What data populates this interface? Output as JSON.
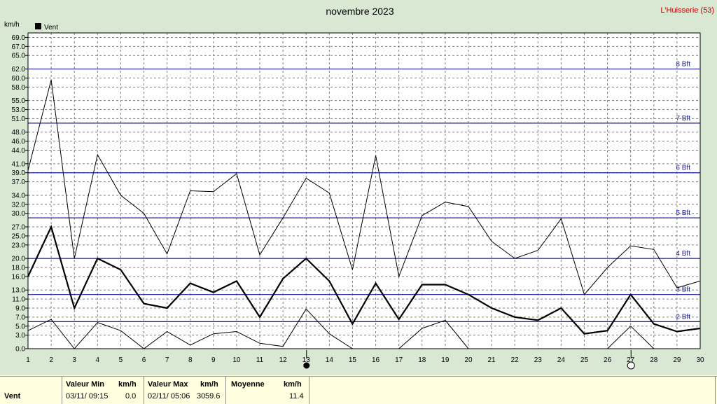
{
  "header": {
    "title": "novembre 2023",
    "station": "L'Huisserie (53)"
  },
  "legend": {
    "label": "Vent"
  },
  "chart_data": {
    "type": "line",
    "title": "novembre 2023",
    "ylabel": "km/h",
    "ylim": [
      0,
      70
    ],
    "yticks": [
      0,
      3,
      5,
      7,
      9,
      11,
      13,
      16,
      18,
      20,
      23,
      25,
      27,
      30,
      32,
      34,
      37,
      39,
      41,
      44,
      46,
      48,
      51,
      53,
      55,
      58,
      60,
      62,
      65,
      67,
      69
    ],
    "ytick_labels": [
      "0.0",
      "3.0",
      "5.0",
      "7.0",
      "9.0",
      "11.0",
      "13.0",
      "16.0",
      "18.0",
      "20.0",
      "23.0",
      "25.0",
      "27.0",
      "30.0",
      "32.0",
      "34.0",
      "37.0",
      "39.0",
      "41.0",
      "44.0",
      "46.0",
      "48.0",
      "51.0",
      "53.0",
      "55.0",
      "58.0",
      "60.0",
      "62.0",
      "65.0",
      "67.0",
      "69.0"
    ],
    "x": [
      1,
      2,
      3,
      4,
      5,
      6,
      7,
      8,
      9,
      10,
      11,
      12,
      13,
      14,
      15,
      16,
      17,
      18,
      19,
      20,
      21,
      22,
      23,
      24,
      25,
      26,
      27,
      28,
      29,
      30
    ],
    "grid": true,
    "legend_position": "top-left",
    "series": [
      {
        "name": "Vent",
        "role": "max",
        "values": [
          39.5,
          59.6,
          20.0,
          43.0,
          34.0,
          30.0,
          21.0,
          35.0,
          34.8,
          38.8,
          20.8,
          29.0,
          37.8,
          34.5,
          17.5,
          42.8,
          16.0,
          29.5,
          32.5,
          31.5,
          23.8,
          20.0,
          21.8,
          28.8,
          12.0,
          18.0,
          22.8,
          22.0,
          13.5,
          15.0
        ]
      },
      {
        "name": "Vent",
        "role": "mean",
        "values": [
          16.0,
          27.0,
          9.0,
          20.0,
          17.5,
          10.0,
          9.0,
          14.5,
          12.5,
          15.0,
          7.0,
          15.5,
          20.0,
          15.0,
          5.5,
          14.5,
          6.5,
          14.2,
          14.2,
          12.0,
          9.0,
          7.0,
          6.3,
          9.0,
          3.3,
          4.0,
          12.0,
          5.5,
          3.8,
          4.5
        ]
      },
      {
        "name": "Vent",
        "role": "min",
        "values": [
          4.0,
          6.5,
          0.0,
          5.8,
          4.0,
          0.0,
          3.8,
          0.8,
          3.3,
          3.8,
          1.2,
          0.5,
          8.8,
          3.3,
          0.0,
          null,
          0.0,
          4.5,
          6.3,
          0.0,
          null,
          null,
          null,
          null,
          null,
          0.0,
          5.0,
          0.0,
          null,
          null
        ]
      }
    ],
    "beaufort_lines": [
      {
        "label": "2 Bft",
        "value": 6
      },
      {
        "label": "3 Bft",
        "value": 12
      },
      {
        "label": "4 Bft",
        "value": 20
      },
      {
        "label": "5 Bft",
        "value": 29
      },
      {
        "label": "6 Bft",
        "value": 39
      },
      {
        "label": "7 Bft",
        "value": 50
      },
      {
        "label": "8 Bft",
        "value": 62
      }
    ],
    "moon_phases": [
      {
        "day": 13,
        "phase": "new"
      },
      {
        "day": 27,
        "phase": "full"
      }
    ]
  },
  "stats": {
    "row_label": "Vent",
    "min": {
      "header": "Valeur Min",
      "unit": "km/h",
      "date": "03/11/  09:15",
      "value": "0.0"
    },
    "max": {
      "header": "Valeur Max",
      "unit": "km/h",
      "date": "02/11/  05:06",
      "value": "59.6",
      "overlap": "30"
    },
    "mean": {
      "header": "Moyenne",
      "unit": "km/h",
      "value": "11.4"
    }
  },
  "colors": {
    "plot_bg": "#ffffff",
    "frame_bg": "#d9e8d3",
    "grid": "#7f7f7f",
    "bft_line": "#1a1aa0",
    "station": "#c00000",
    "stats_bg": "#ffffe0"
  }
}
